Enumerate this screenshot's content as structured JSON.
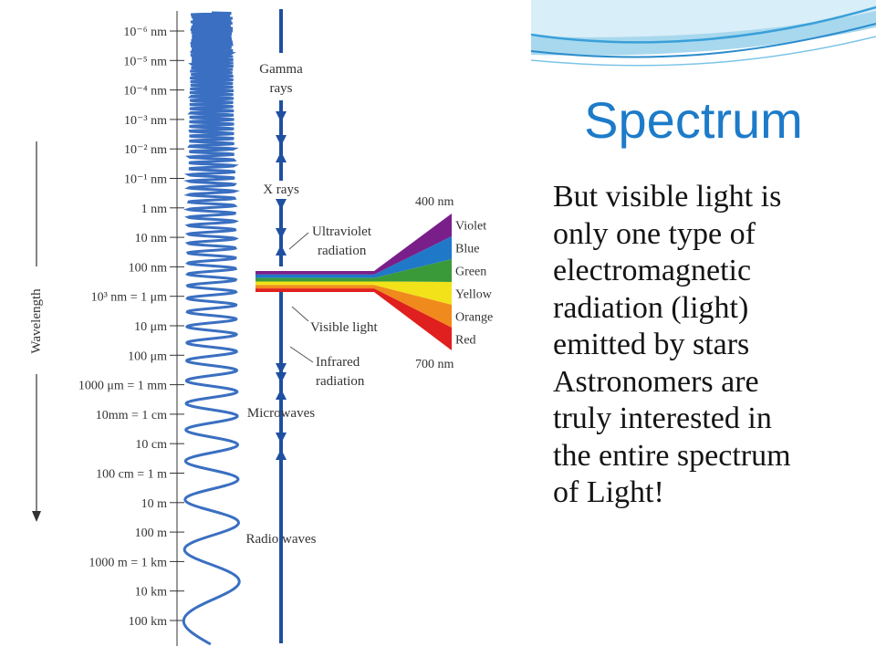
{
  "slide": {
    "title": "Spectrum",
    "body_lines": [
      "But visible light is",
      "only one type of",
      "electromagnetic",
      "radiation (light)",
      "emitted by stars",
      "Astronomers are",
      "truly interested in",
      "the entire spectrum",
      "of Light!"
    ]
  },
  "diagram": {
    "axis_label": "Wavelength",
    "ticks": [
      "10⁻⁶ nm",
      "10⁻⁵ nm",
      "10⁻⁴ nm",
      "10⁻³ nm",
      "10⁻² nm",
      "10⁻¹ nm",
      "1 nm",
      "10 nm",
      "100 nm",
      "10³ nm = 1 μm",
      "10 μm",
      "100 μm",
      "1000 μm = 1 mm",
      "10mm = 1 cm",
      "10 cm",
      "100 cm = 1 m",
      "10 m",
      "100 m",
      "1000 m = 1 km",
      "10 km",
      "100 km"
    ],
    "regions": [
      {
        "lines": [
          "Gamma",
          "rays"
        ]
      },
      {
        "lines": [
          "X rays"
        ]
      },
      {
        "lines": [
          "Ultraviolet",
          "radiation"
        ]
      },
      {
        "lines": [
          "Visible light"
        ]
      },
      {
        "lines": [
          "Infrared",
          "radiation"
        ]
      },
      {
        "lines": [
          "Microwaves"
        ]
      },
      {
        "lines": [
          "Radio waves"
        ]
      }
    ],
    "visible": {
      "top_label": "400 nm",
      "bottom_label": "700 nm",
      "bands": [
        {
          "name": "Violet",
          "color": "#7a1f8a"
        },
        {
          "name": "Blue",
          "color": "#1f78c8"
        },
        {
          "name": "Green",
          "color": "#3a9a3a"
        },
        {
          "name": "Yellow",
          "color": "#f2e21a"
        },
        {
          "name": "Orange",
          "color": "#f08a1c"
        },
        {
          "name": "Red",
          "color": "#e0201e"
        }
      ]
    },
    "colors": {
      "arrow": "#1f4fa0",
      "wave": "#3a6fc1",
      "text": "#333333",
      "title": "#1d7bc9"
    }
  }
}
